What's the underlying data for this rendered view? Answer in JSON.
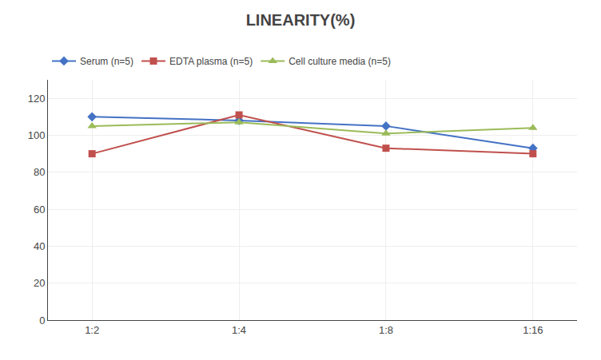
{
  "chart_data": {
    "type": "line",
    "title": "LINEARITY(%)",
    "categories": [
      "1:2",
      "1:4",
      "1:8",
      "1:16"
    ],
    "series": [
      {
        "name": "Serum (n=5)",
        "color": "#4472C4",
        "marker": "diamond",
        "values": [
          110,
          108,
          105,
          93
        ]
      },
      {
        "name": "EDTA plasma (n=5)",
        "color": "#C0504D",
        "marker": "square",
        "values": [
          90,
          111,
          93,
          90
        ]
      },
      {
        "name": "Cell culture media (n=5)",
        "color": "#9BBB59",
        "marker": "triangle",
        "values": [
          105,
          107,
          101,
          104
        ]
      }
    ],
    "ylim": [
      0,
      130
    ],
    "yticks": [
      0,
      20,
      40,
      60,
      80,
      100,
      120
    ],
    "grid": true,
    "legend": "top"
  }
}
